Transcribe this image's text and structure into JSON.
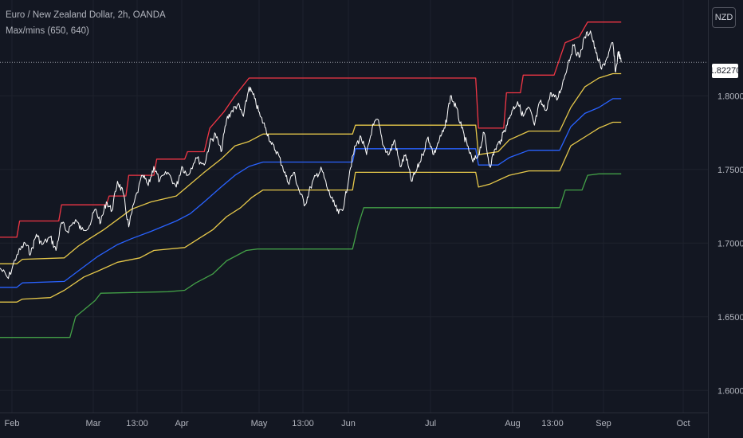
{
  "header": {
    "symbol_title": "Euro / New Zealand Dollar, 2h, OANDA",
    "indicator": "Max/mins (650, 640)"
  },
  "currency_button": "NZD",
  "last_price_label": "1.82270",
  "colors": {
    "background": "#131722",
    "grid": "#1e222d",
    "axis_text": "#b2b5be",
    "price": "#ffffff",
    "red": "#f23645",
    "yellow": "#e6c84a",
    "blue": "#2962ff",
    "green": "#43a047"
  },
  "chart_data": {
    "type": "line",
    "title": "Euro / New Zealand Dollar, 2h, OANDA",
    "indicator": "Max/mins (650, 640)",
    "x_tick_labels": [
      "Feb",
      "Mar",
      "13:00",
      "Apr",
      "May",
      "13:00",
      "Jun",
      "Jul",
      "Aug",
      "13:00",
      "Sep",
      "Oct"
    ],
    "y_tick_labels": [
      "1.60000",
      "1.65000",
      "1.70000",
      "1.75000",
      "1.80000"
    ],
    "ylim": [
      1.585,
      1.865
    ],
    "x_range": [
      "2022-01-28",
      "2022-10-08"
    ],
    "last_price": 1.8227,
    "grid": true,
    "series": [
      {
        "color": "red",
        "points": [
          [
            "2022-01-28",
            1.704
          ],
          [
            "2022-02-03",
            1.704
          ],
          [
            "2022-02-04",
            1.715
          ],
          [
            "2022-02-18",
            1.715
          ],
          [
            "2022-02-19",
            1.726
          ],
          [
            "2022-03-07",
            1.726
          ],
          [
            "2022-03-08",
            1.732
          ],
          [
            "2022-03-14",
            1.732
          ],
          [
            "2022-03-15",
            1.746
          ],
          [
            "2022-03-24",
            1.746
          ],
          [
            "2022-03-25",
            1.757
          ],
          [
            "2022-04-04",
            1.757
          ],
          [
            "2022-04-05",
            1.762
          ],
          [
            "2022-04-11",
            1.762
          ],
          [
            "2022-04-13",
            1.778
          ],
          [
            "2022-04-18",
            1.789
          ],
          [
            "2022-04-22",
            1.8
          ],
          [
            "2022-04-27",
            1.812
          ],
          [
            "2022-07-17",
            1.812
          ],
          [
            "2022-07-18",
            1.778
          ],
          [
            "2022-07-27",
            1.778
          ],
          [
            "2022-07-28",
            1.802
          ],
          [
            "2022-08-02",
            1.802
          ],
          [
            "2022-08-03",
            1.814
          ],
          [
            "2022-08-14",
            1.814
          ],
          [
            "2022-08-18",
            1.836
          ],
          [
            "2022-08-23",
            1.84
          ],
          [
            "2022-08-26",
            1.85
          ],
          [
            "2022-09-07",
            1.85
          ]
        ]
      },
      {
        "color": "yellow",
        "points": [
          [
            "2022-01-28",
            1.686
          ],
          [
            "2022-02-03",
            1.686
          ],
          [
            "2022-02-05",
            1.689
          ],
          [
            "2022-02-20",
            1.69
          ],
          [
            "2022-02-25",
            1.698
          ],
          [
            "2022-03-01",
            1.703
          ],
          [
            "2022-03-06",
            1.709
          ],
          [
            "2022-03-11",
            1.716
          ],
          [
            "2022-03-16",
            1.723
          ],
          [
            "2022-03-23",
            1.728
          ],
          [
            "2022-04-01",
            1.732
          ],
          [
            "2022-04-06",
            1.74
          ],
          [
            "2022-04-11",
            1.748
          ],
          [
            "2022-04-17",
            1.757
          ],
          [
            "2022-04-22",
            1.766
          ],
          [
            "2022-04-27",
            1.769
          ],
          [
            "2022-05-02",
            1.774
          ],
          [
            "2022-06-03",
            1.774
          ],
          [
            "2022-06-04",
            1.78
          ],
          [
            "2022-07-17",
            1.78
          ],
          [
            "2022-07-18",
            1.76
          ],
          [
            "2022-07-25",
            1.762
          ],
          [
            "2022-07-29",
            1.77
          ],
          [
            "2022-08-05",
            1.776
          ],
          [
            "2022-08-16",
            1.776
          ],
          [
            "2022-08-20",
            1.792
          ],
          [
            "2022-08-25",
            1.806
          ],
          [
            "2022-08-30",
            1.812
          ],
          [
            "2022-09-04",
            1.815
          ],
          [
            "2022-09-07",
            1.815
          ]
        ]
      },
      {
        "color": "yellow",
        "points": [
          [
            "2022-01-28",
            1.66
          ],
          [
            "2022-02-03",
            1.66
          ],
          [
            "2022-02-05",
            1.662
          ],
          [
            "2022-02-15",
            1.663
          ],
          [
            "2022-02-20",
            1.668
          ],
          [
            "2022-02-27",
            1.677
          ],
          [
            "2022-03-04",
            1.681
          ],
          [
            "2022-03-11",
            1.687
          ],
          [
            "2022-03-19",
            1.69
          ],
          [
            "2022-03-24",
            1.695
          ],
          [
            "2022-04-04",
            1.697
          ],
          [
            "2022-04-09",
            1.703
          ],
          [
            "2022-04-14",
            1.709
          ],
          [
            "2022-04-19",
            1.718
          ],
          [
            "2022-04-24",
            1.724
          ],
          [
            "2022-04-28",
            1.731
          ],
          [
            "2022-05-02",
            1.736
          ],
          [
            "2022-06-03",
            1.736
          ],
          [
            "2022-06-04",
            1.748
          ],
          [
            "2022-07-17",
            1.748
          ],
          [
            "2022-07-18",
            1.738
          ],
          [
            "2022-07-22",
            1.74
          ],
          [
            "2022-07-29",
            1.746
          ],
          [
            "2022-08-05",
            1.749
          ],
          [
            "2022-08-16",
            1.749
          ],
          [
            "2022-08-20",
            1.766
          ],
          [
            "2022-08-25",
            1.772
          ],
          [
            "2022-08-30",
            1.778
          ],
          [
            "2022-09-04",
            1.782
          ],
          [
            "2022-09-07",
            1.782
          ]
        ]
      },
      {
        "color": "blue",
        "points": [
          [
            "2022-01-28",
            1.67
          ],
          [
            "2022-02-03",
            1.67
          ],
          [
            "2022-02-05",
            1.673
          ],
          [
            "2022-02-20",
            1.674
          ],
          [
            "2022-02-27",
            1.684
          ],
          [
            "2022-03-04",
            1.691
          ],
          [
            "2022-03-11",
            1.699
          ],
          [
            "2022-03-16",
            1.703
          ],
          [
            "2022-03-23",
            1.708
          ],
          [
            "2022-04-01",
            1.715
          ],
          [
            "2022-04-06",
            1.72
          ],
          [
            "2022-04-11",
            1.728
          ],
          [
            "2022-04-17",
            1.738
          ],
          [
            "2022-04-22",
            1.746
          ],
          [
            "2022-04-27",
            1.752
          ],
          [
            "2022-05-02",
            1.755
          ],
          [
            "2022-06-03",
            1.755
          ],
          [
            "2022-06-04",
            1.764
          ],
          [
            "2022-07-17",
            1.764
          ],
          [
            "2022-07-18",
            1.753
          ],
          [
            "2022-07-25",
            1.753
          ],
          [
            "2022-07-29",
            1.758
          ],
          [
            "2022-08-05",
            1.763
          ],
          [
            "2022-08-16",
            1.763
          ],
          [
            "2022-08-20",
            1.779
          ],
          [
            "2022-08-25",
            1.788
          ],
          [
            "2022-08-30",
            1.792
          ],
          [
            "2022-09-04",
            1.798
          ],
          [
            "2022-09-07",
            1.798
          ]
        ]
      },
      {
        "color": "green",
        "points": [
          [
            "2022-01-28",
            1.636
          ],
          [
            "2022-02-22",
            1.636
          ],
          [
            "2022-02-24",
            1.65
          ],
          [
            "2022-03-03",
            1.661
          ],
          [
            "2022-03-05",
            1.666
          ],
          [
            "2022-03-29",
            1.667
          ],
          [
            "2022-04-04",
            1.668
          ],
          [
            "2022-04-08",
            1.673
          ],
          [
            "2022-04-14",
            1.679
          ],
          [
            "2022-04-19",
            1.688
          ],
          [
            "2022-04-26",
            1.695
          ],
          [
            "2022-04-30",
            1.696
          ],
          [
            "2022-06-03",
            1.696
          ],
          [
            "2022-06-05",
            1.712
          ],
          [
            "2022-06-07",
            1.724
          ],
          [
            "2022-08-16",
            1.724
          ],
          [
            "2022-08-18",
            1.736
          ],
          [
            "2022-08-24",
            1.736
          ],
          [
            "2022-08-26",
            1.746
          ],
          [
            "2022-08-30",
            1.747
          ],
          [
            "2022-09-07",
            1.747
          ]
        ]
      },
      {
        "color": "price",
        "points": [
          [
            "2022-01-28",
            1.683
          ],
          [
            "2022-01-31",
            1.676
          ],
          [
            "2022-02-03",
            1.692
          ],
          [
            "2022-02-06",
            1.7
          ],
          [
            "2022-02-08",
            1.693
          ],
          [
            "2022-02-10",
            1.706
          ],
          [
            "2022-02-12",
            1.699
          ],
          [
            "2022-02-15",
            1.704
          ],
          [
            "2022-02-17",
            1.695
          ],
          [
            "2022-02-19",
            1.714
          ],
          [
            "2022-02-21",
            1.708
          ],
          [
            "2022-02-24",
            1.716
          ],
          [
            "2022-02-26",
            1.709
          ],
          [
            "2022-03-01",
            1.712
          ],
          [
            "2022-03-03",
            1.723
          ],
          [
            "2022-03-05",
            1.714
          ],
          [
            "2022-03-07",
            1.728
          ],
          [
            "2022-03-09",
            1.722
          ],
          [
            "2022-03-11",
            1.742
          ],
          [
            "2022-03-13",
            1.734
          ],
          [
            "2022-03-15",
            1.711
          ],
          [
            "2022-03-17",
            1.728
          ],
          [
            "2022-03-20",
            1.746
          ],
          [
            "2022-03-22",
            1.739
          ],
          [
            "2022-03-24",
            1.752
          ],
          [
            "2022-03-26",
            1.742
          ],
          [
            "2022-03-29",
            1.748
          ],
          [
            "2022-04-01",
            1.738
          ],
          [
            "2022-04-03",
            1.752
          ],
          [
            "2022-04-05",
            1.746
          ],
          [
            "2022-04-08",
            1.758
          ],
          [
            "2022-04-11",
            1.753
          ],
          [
            "2022-04-13",
            1.768
          ],
          [
            "2022-04-15",
            1.774
          ],
          [
            "2022-04-17",
            1.762
          ],
          [
            "2022-04-19",
            1.784
          ],
          [
            "2022-04-21",
            1.79
          ],
          [
            "2022-04-23",
            1.794
          ],
          [
            "2022-04-25",
            1.786
          ],
          [
            "2022-04-27",
            1.806
          ],
          [
            "2022-04-29",
            1.798
          ],
          [
            "2022-05-01",
            1.786
          ],
          [
            "2022-05-03",
            1.778
          ],
          [
            "2022-05-05",
            1.767
          ],
          [
            "2022-05-07",
            1.762
          ],
          [
            "2022-05-09",
            1.752
          ],
          [
            "2022-05-11",
            1.741
          ],
          [
            "2022-05-13",
            1.748
          ],
          [
            "2022-05-15",
            1.735
          ],
          [
            "2022-05-17",
            1.726
          ],
          [
            "2022-05-19",
            1.738
          ],
          [
            "2022-05-21",
            1.746
          ],
          [
            "2022-05-23",
            1.75
          ],
          [
            "2022-05-25",
            1.737
          ],
          [
            "2022-05-27",
            1.728
          ],
          [
            "2022-05-29",
            1.72
          ],
          [
            "2022-05-31",
            1.726
          ],
          [
            "2022-06-02",
            1.749
          ],
          [
            "2022-06-04",
            1.766
          ],
          [
            "2022-06-06",
            1.772
          ],
          [
            "2022-06-08",
            1.76
          ],
          [
            "2022-06-10",
            1.778
          ],
          [
            "2022-06-12",
            1.784
          ],
          [
            "2022-06-14",
            1.766
          ],
          [
            "2022-06-16",
            1.76
          ],
          [
            "2022-06-18",
            1.77
          ],
          [
            "2022-06-20",
            1.752
          ],
          [
            "2022-06-22",
            1.76
          ],
          [
            "2022-06-24",
            1.742
          ],
          [
            "2022-06-26",
            1.75
          ],
          [
            "2022-06-28",
            1.76
          ],
          [
            "2022-06-30",
            1.772
          ],
          [
            "2022-07-02",
            1.76
          ],
          [
            "2022-07-04",
            1.77
          ],
          [
            "2022-07-06",
            1.778
          ],
          [
            "2022-07-08",
            1.8
          ],
          [
            "2022-07-10",
            1.792
          ],
          [
            "2022-07-12",
            1.778
          ],
          [
            "2022-07-14",
            1.766
          ],
          [
            "2022-07-16",
            1.755
          ],
          [
            "2022-07-18",
            1.76
          ],
          [
            "2022-07-20",
            1.775
          ],
          [
            "2022-07-22",
            1.752
          ],
          [
            "2022-07-24",
            1.764
          ],
          [
            "2022-07-26",
            1.77
          ],
          [
            "2022-07-28",
            1.78
          ],
          [
            "2022-07-30",
            1.79
          ],
          [
            "2022-08-01",
            1.796
          ],
          [
            "2022-08-03",
            1.786
          ],
          [
            "2022-08-05",
            1.792
          ],
          [
            "2022-08-07",
            1.78
          ],
          [
            "2022-08-09",
            1.796
          ],
          [
            "2022-08-11",
            1.79
          ],
          [
            "2022-08-13",
            1.802
          ],
          [
            "2022-08-15",
            1.797
          ],
          [
            "2022-08-17",
            1.808
          ],
          [
            "2022-08-19",
            1.822
          ],
          [
            "2022-08-21",
            1.834
          ],
          [
            "2022-08-23",
            1.826
          ],
          [
            "2022-08-25",
            1.84
          ],
          [
            "2022-08-27",
            1.844
          ],
          [
            "2022-08-29",
            1.829
          ],
          [
            "2022-08-31",
            1.818
          ],
          [
            "2022-09-02",
            1.826
          ],
          [
            "2022-09-04",
            1.836
          ],
          [
            "2022-09-05",
            1.816
          ],
          [
            "2022-09-06",
            1.83
          ],
          [
            "2022-09-07",
            1.8227
          ]
        ]
      }
    ]
  }
}
